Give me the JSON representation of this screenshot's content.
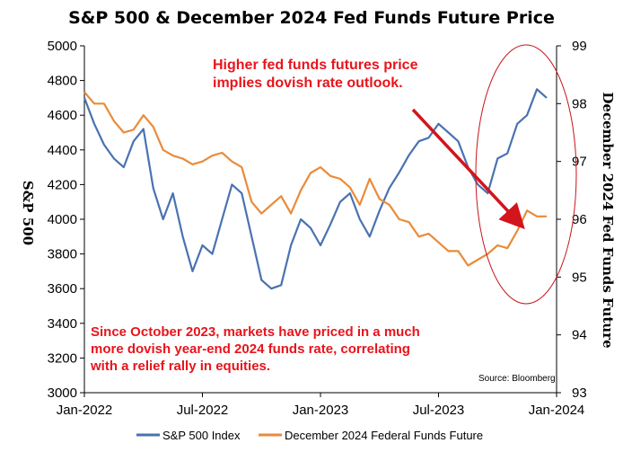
{
  "chart_data": {
    "type": "line",
    "title": "S&P 500 & December 2024 Fed Funds Future Price",
    "x_tick_labels": [
      "Jan-2022",
      "Jul-2022",
      "Jan-2023",
      "Jul-2023",
      "Jan-2024"
    ],
    "xlim": [
      0,
      24
    ],
    "left_axis": {
      "label": "S&P 500",
      "ylim": [
        3000,
        5000
      ],
      "ticks": [
        "3000",
        "3200",
        "3400",
        "3600",
        "3800",
        "4000",
        "4200",
        "4400",
        "4600",
        "4800",
        "5000"
      ]
    },
    "right_axis": {
      "label": "December 2024 Fed Funds Future",
      "ylim": [
        93,
        99
      ],
      "ticks": [
        "93",
        "94",
        "95",
        "96",
        "97",
        "98",
        "99"
      ]
    },
    "series": [
      {
        "name": "S&P 500 Index",
        "axis": "left",
        "color": "#4a72b0",
        "x": [
          0,
          0.5,
          1,
          1.5,
          2,
          2.5,
          3,
          3.5,
          4,
          4.5,
          5,
          5.5,
          6,
          6.5,
          7,
          7.5,
          8,
          8.5,
          9,
          9.5,
          10,
          10.5,
          11,
          11.5,
          12,
          12.5,
          13,
          13.5,
          14,
          14.5,
          15,
          15.5,
          16,
          16.5,
          17,
          17.5,
          18,
          18.5,
          19,
          19.5,
          20,
          20.5,
          21,
          21.5,
          22,
          22.5,
          23,
          23.5
        ],
        "values": [
          4700,
          4550,
          4430,
          4350,
          4300,
          4450,
          4520,
          4180,
          4000,
          4150,
          3900,
          3700,
          3850,
          3800,
          4000,
          4200,
          4150,
          3900,
          3650,
          3600,
          3620,
          3850,
          4000,
          3950,
          3850,
          3970,
          4100,
          4150,
          4000,
          3900,
          4050,
          4180,
          4270,
          4370,
          4450,
          4470,
          4550,
          4500,
          4450,
          4300,
          4200,
          4150,
          4350,
          4380,
          4550,
          4600,
          4750,
          4700
        ]
      },
      {
        "name": "December 2024 Federal Funds Future",
        "axis": "right",
        "color": "#e98b3a",
        "x": [
          0,
          0.5,
          1,
          1.5,
          2,
          2.5,
          3,
          3.5,
          4,
          4.5,
          5,
          5.5,
          6,
          6.5,
          7,
          7.5,
          8,
          8.5,
          9,
          9.5,
          10,
          10.5,
          11,
          11.5,
          12,
          12.5,
          13,
          13.5,
          14,
          14.5,
          15,
          15.5,
          16,
          16.5,
          17,
          17.5,
          18,
          18.5,
          19,
          19.5,
          20,
          20.5,
          21,
          21.5,
          22,
          22.5,
          23,
          23.5
        ],
        "values": [
          98.2,
          98.0,
          98.0,
          97.7,
          97.5,
          97.55,
          97.8,
          97.6,
          97.2,
          97.1,
          97.05,
          96.95,
          97.0,
          97.1,
          97.15,
          97.0,
          96.9,
          96.3,
          96.1,
          96.25,
          96.4,
          96.1,
          96.5,
          96.8,
          96.9,
          96.75,
          96.7,
          96.55,
          96.25,
          96.7,
          96.35,
          96.25,
          96.0,
          95.95,
          95.7,
          95.75,
          95.6,
          95.45,
          95.45,
          95.2,
          95.3,
          95.4,
          95.55,
          95.5,
          95.8,
          96.15,
          96.05,
          96.05
        ]
      }
    ],
    "annotations": {
      "top": [
        "Higher fed funds futures price",
        "implies dovish rate outlook."
      ],
      "bottom": [
        "Since October 2023, markets have priced in a much",
        "more dovish year-end 2024 funds rate, correlating",
        "with a relief rally in equities."
      ],
      "source": "Source: Bloomberg"
    },
    "legend_position": "bottom"
  },
  "colors": {
    "sp500": "#4a72b0",
    "fedfunds": "#e98b3a",
    "annotation": "#e8141c"
  }
}
